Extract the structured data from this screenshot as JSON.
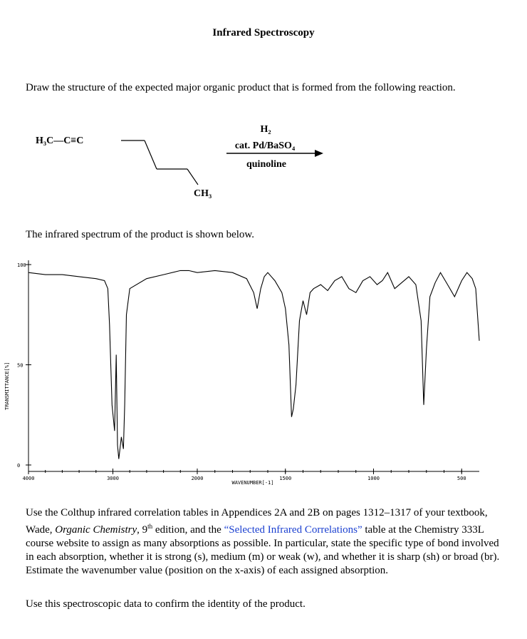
{
  "title": "Infrared Spectroscopy",
  "question": "Draw the structure of the expected major organic product that is formed from the following reaction.",
  "reactant": {
    "left_group": "H₃C—C≡C",
    "right_group": "CH₃"
  },
  "reagents": {
    "line1": "H₂",
    "line2": "cat. Pd/BaSO₄",
    "line3": "quinoline"
  },
  "spectrum_intro": "The infrared spectrum of the product is shown below.",
  "chart_data": {
    "type": "line",
    "ylabel": "TRANSMITTANCE[%]",
    "xlabel": "WAVENUMBER[-1]",
    "ylim": [
      0,
      100
    ],
    "xlim": [
      4000,
      400
    ],
    "y_ticks": [
      "100",
      "50",
      "0"
    ],
    "x_ticks": [
      "4000",
      "3000",
      "2000",
      "1500",
      "1000",
      "500"
    ],
    "series": [
      {
        "x": [
          4000,
          3800,
          3600,
          3400,
          3200,
          3100,
          3060,
          3040,
          3010,
          2980,
          2960,
          2945,
          2930,
          2900,
          2875,
          2860,
          2840,
          2800,
          2600,
          2400,
          2200,
          2100,
          2000,
          1900,
          1800,
          1720,
          1680,
          1660,
          1640,
          1620,
          1600,
          1560,
          1520,
          1500,
          1480,
          1465,
          1455,
          1440,
          1420,
          1400,
          1380,
          1360,
          1340,
          1300,
          1260,
          1220,
          1180,
          1140,
          1100,
          1060,
          1020,
          980,
          950,
          920,
          880,
          840,
          800,
          760,
          730,
          715,
          700,
          680,
          650,
          620,
          580,
          540,
          500,
          470,
          440,
          420,
          400
        ],
        "y": [
          96,
          95,
          95,
          94,
          93,
          92,
          88,
          70,
          30,
          17,
          55,
          10,
          3,
          14,
          8,
          30,
          75,
          88,
          93,
          95,
          97,
          97,
          96,
          97,
          96,
          93,
          86,
          78,
          88,
          94,
          96,
          92,
          86,
          78,
          60,
          24,
          28,
          40,
          72,
          82,
          75,
          86,
          88,
          90,
          87,
          92,
          94,
          88,
          86,
          92,
          94,
          90,
          92,
          96,
          88,
          91,
          94,
          90,
          72,
          30,
          58,
          84,
          91,
          96,
          90,
          84,
          92,
          96,
          93,
          88,
          62
        ]
      }
    ]
  },
  "instructions": {
    "p1_a": "Use the Colthup infrared correlation tables in Appendices 2A and 2B on pages 1312–1317 of your textbook, Wade, ",
    "p1_b": "Organic Chemistry",
    "p1_c": ", 9",
    "p1_sup": "th",
    "p1_d": " edition, and the ",
    "p1_link": "“Selected Infrared Correlations”",
    "p1_e": " table at the Chemistry 333L course website to assign as many absorptions as possible.  In particular, state the specific type of bond involved in each absorption, whether it is strong (s), medium (m) or weak (w), and whether it is sharp (sh) or broad (br).  Estimate the wavenumber value (position on the x-axis) of each assigned absorption.",
    "p2": "Use this spectroscopic data to confirm the identity of the product."
  }
}
